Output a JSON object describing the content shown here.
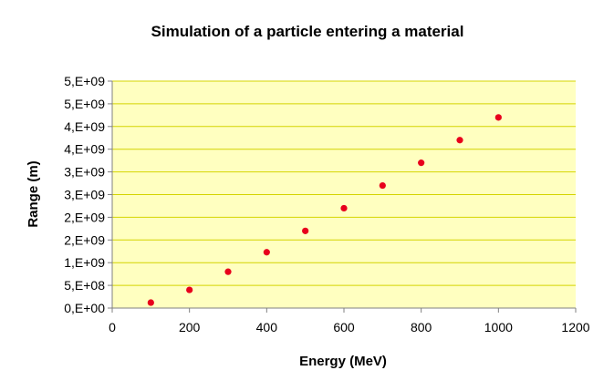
{
  "chart_data": {
    "type": "scatter",
    "title": "Simulation of a particle entering a material",
    "xlabel": "Energy (MeV)",
    "ylabel": "Range (m)",
    "xlim": [
      0,
      1200
    ],
    "ylim": [
      0,
      5000000000
    ],
    "x_ticks": [
      0,
      200,
      400,
      600,
      800,
      1000,
      1200
    ],
    "x_tick_labels": [
      "0",
      "200",
      "400",
      "600",
      "800",
      "1000",
      "1200"
    ],
    "y_ticks": [
      0,
      500000000,
      1000000000,
      1500000000,
      2000000000,
      2500000000,
      3000000000,
      3500000000,
      4000000000,
      4500000000,
      5000000000
    ],
    "y_tick_labels": [
      "0,E+00",
      "5,E+08",
      "1,E+09",
      "2,E+09",
      "2,E+09",
      "3,E+09",
      "3,E+09",
      "4,E+09",
      "4,E+09",
      "5,E+09",
      "5,E+09"
    ],
    "grid": "horizontal",
    "legend": "none",
    "series": [
      {
        "x": [
          100,
          200,
          300,
          400,
          500,
          600,
          700,
          800,
          900,
          1000
        ],
        "y": [
          120000000,
          400000000,
          800000000,
          1230000000,
          1700000000,
          2200000000,
          2700000000,
          3200000000,
          3700000000,
          4200000000
        ],
        "color": "#e8001c"
      }
    ],
    "plot_background": "#ffffc0",
    "grid_color": "#d4d400"
  }
}
